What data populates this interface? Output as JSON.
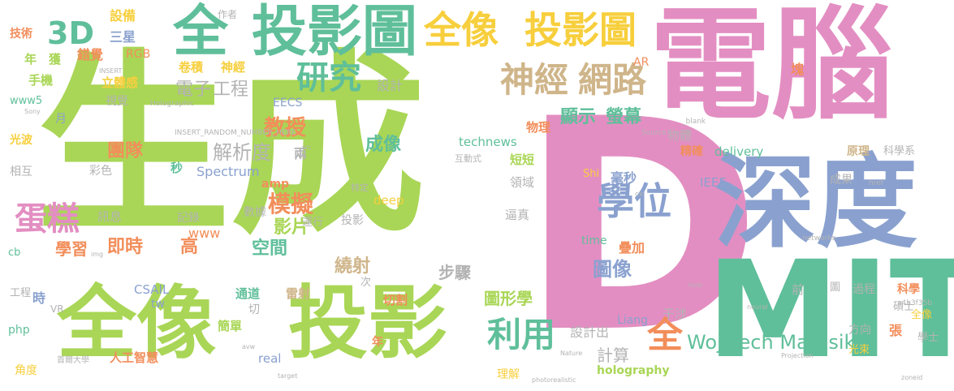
{
  "words": {
    "shengcheng": "生成",
    "diannao": "電腦",
    "d": "D",
    "shendu": "深度",
    "mit": "MIT",
    "quanxiang": "全像",
    "touying": "投影",
    "quan": "全",
    "touyingtu": "投影圖",
    "quanxiang2": "全像",
    "touyingtu2": "投影圖",
    "d3": "3D",
    "yanjiu": "研究",
    "shenjing": "神經",
    "wanglu": "網路",
    "xuewei": "學位",
    "dangao": "蛋糕",
    "wojciech": "Wojciech Matusik",
    "liyong": "利用",
    "quan2": "全",
    "moni": "模擬",
    "jiaoshou": "教授",
    "dianzi": "電子",
    "gongcheng": "工程",
    "xianshi": "顯示",
    "yingmu": "螢幕",
    "jiexidu": "解析度",
    "chengxiang": "成像",
    "tuxiang": "圖像",
    "tuanjdui": "團隊",
    "jishi": "即時",
    "xuexi": "學習",
    "yingpian": "影片",
    "gao": "高",
    "kongjian": "空間",
    "raoshe": "繞射",
    "buzhou": "步驟",
    "tuxingxue": "圖形學",
    "jisuan": "計算",
    "sheji": "設計",
    "shejichu": "設計出",
    "holography": "holography",
    "technews": "technews",
    "spectrum": "Spectrum",
    "delivery": "delivery",
    "deep": "deep",
    "time": "time",
    "ieee": "IEEE",
    "www": "www",
    "real": "real",
    "csail": "CSAIL",
    "liang": "Liang",
    "php": "php",
    "rgb": "RGB",
    "eecs": "EECS",
    "www5": "www5",
    "shebei": "設備",
    "sanxing": "三星",
    "cuojue": "錯覺",
    "jishu": "技術",
    "nian": "年",
    "huo": "獲",
    "shouji": "手機",
    "litigan": "立體感",
    "shijue": "視覺",
    "guangbo": "光波",
    "xianghu": "相互",
    "caise": "彩色",
    "xunxi": "訊息",
    "cb": "cb",
    "juanji": "卷積",
    "shenjing2": "神經",
    "wuli": "物理",
    "wuti": "物體",
    "jingque": "精確",
    "haomiao": "毫秒",
    "diejia": "疊加",
    "lingyu": "領域",
    "duanduan": "短短",
    "gansha": "干涉",
    "fangxiang": "方向",
    "guangshu": "光束",
    "zhang": "張",
    "xueshi": "學士",
    "shuoshi": "碩士",
    "kexue": "科學",
    "kexuexi": "科學系",
    "yuanli": "原理",
    "chengguo": "成果",
    "kuai": "塊",
    "rengongzhihui": "人工智慧",
    "jiandan": "簡單",
    "leishe": "雷射",
    "tongdao": "通道",
    "qiege": "切割",
    "qian": "前",
    "guocheng": "過程",
    "liang2": "兩",
    "miao": "秒",
    "jilu": "記錄",
    "shuju": "數據",
    "yunxing": "運行",
    "zhenshi": "逼真",
    "amp": "amp",
    "a": "a",
    "tw": "tw",
    "jiaodu": "角度",
    "lijie": "理解",
    "ar": "AR",
    "vr": "VR",
    "shi": "Shi",
    "yue": "月",
    "gongcheng2": "工程",
    "shi2": "時",
    "qie": "切",
    "ci": "次",
    "touying2": "投影",
    "hologram_quanxiang": "全像",
    "tu": "圖",
    "nian2": "年",
    "insert": "INSERT_RANDOM_NUMBER_HERE",
    "holographic": "Holographic",
    "hash": "a4b3f35b",
    "networks": "networks",
    "source": "Source",
    "blank": "_blank",
    "href": "href",
    "nature": "Nature",
    "projection": "Projection",
    "photorealistic": "photorealistic",
    "neural": "neural",
    "holo": "holo",
    "zoneid": "zoneid",
    "sony": "Sony",
    "target": "target",
    "img": "img",
    "avw": "avw",
    "src": "src",
    "ck": "ck",
    "zuozhe": "作者",
    "hudongshi": "互動式",
    "teding": "特定",
    "shouer": "首爾大學",
    "insert2": "INSERT"
  },
  "palette": {
    "green": "#a9d656",
    "teal": "#5fbf9a",
    "pink": "#e38ec2",
    "blue": "#8aa1cf",
    "yellow": "#f7cf3d",
    "orange": "#f28e5b",
    "tan": "#cfb58a",
    "grey": "#b3b3b3"
  }
}
